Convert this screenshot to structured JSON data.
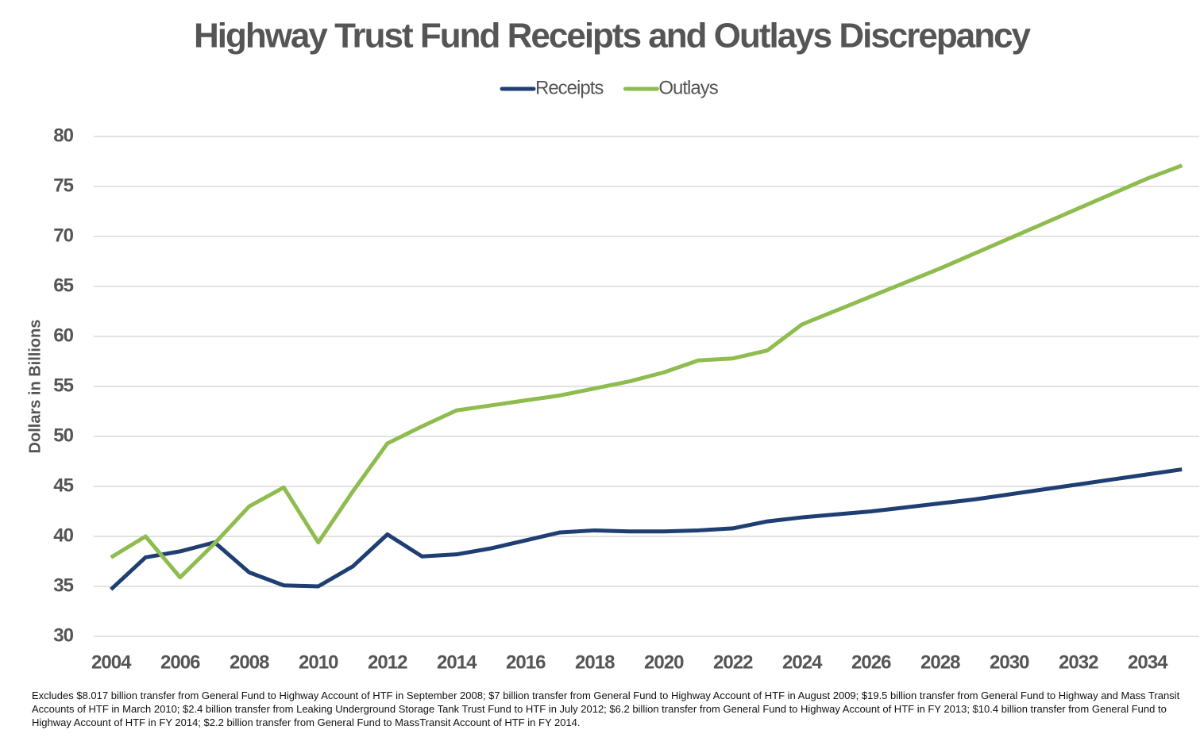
{
  "chart_data": {
    "type": "line",
    "title": "Highway Trust Fund Receipts and Outlays Discrepancy",
    "y_label": "Dollars in Billions",
    "note": "Excludes $8.017 billion transfer from General Fund to Highway Account of HTF in September 2008; $7 billion transfer from General Fund to Highway Account of HTF in August 2009; $19.5 billion transfer from General Fund to Highway and Mass Transit Accounts of HTF in March 2010; $2.4 billion transfer from Leaking Underground Storage Tank Trust Fund to HTF in July 2012; $6.2 billion transfer from General Fund to Highway Account of HTF in FY 2013; $10.4 billion transfer from General Fund to Highway Account of HTF in FY 2014; $2.2 billion transfer from General Fund to MassTransit Account of HTF in FY 2014.",
    "x": [
      2004,
      2005,
      2006,
      2007,
      2008,
      2009,
      2010,
      2011,
      2012,
      2013,
      2014,
      2015,
      2016,
      2017,
      2018,
      2019,
      2020,
      2021,
      2022,
      2023,
      2024,
      2025,
      2026,
      2027,
      2028,
      2029,
      2030,
      2031,
      2032,
      2033,
      2034,
      2035
    ],
    "series": [
      {
        "name": "Receipts",
        "color": "#1f3f73",
        "values": [
          34.7,
          37.9,
          38.5,
          39.4,
          36.4,
          35.1,
          35.0,
          37.0,
          40.2,
          38.0,
          38.2,
          38.8,
          39.6,
          40.4,
          40.6,
          40.5,
          40.5,
          40.6,
          40.8,
          41.5,
          41.9,
          42.2,
          42.5,
          42.9,
          43.3,
          43.7,
          44.2,
          44.7,
          45.2,
          45.7,
          46.2,
          46.7
        ]
      },
      {
        "name": "Outlays",
        "color": "#8fbc4f",
        "values": [
          37.9,
          40.0,
          35.9,
          39.3,
          43.0,
          44.9,
          39.4,
          44.5,
          49.3,
          51.0,
          52.6,
          53.1,
          53.6,
          54.1,
          54.8,
          55.5,
          56.4,
          57.6,
          57.8,
          58.6,
          61.2,
          62.6,
          64.0,
          65.4,
          66.8,
          68.3,
          69.8,
          71.3,
          72.8,
          74.3,
          75.8,
          77.1
        ]
      }
    ],
    "xlim": [
      2003.5,
      2035.5
    ],
    "xticks": [
      2004,
      2006,
      2008,
      2010,
      2012,
      2014,
      2016,
      2018,
      2020,
      2022,
      2024,
      2026,
      2028,
      2030,
      2032,
      2034
    ],
    "ylim": [
      30,
      80
    ],
    "yticks": [
      30,
      35,
      40,
      45,
      50,
      55,
      60,
      65,
      70,
      75,
      80
    ],
    "grid": true,
    "legend": "top"
  }
}
